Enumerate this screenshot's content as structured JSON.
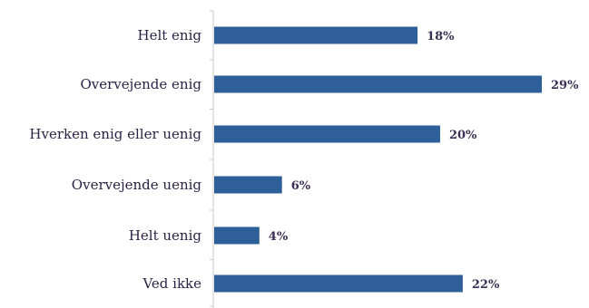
{
  "chart_data": {
    "type": "bar",
    "orientation": "horizontal",
    "categories": [
      "Helt enig",
      "Overvejende enig",
      "Hverken enig eller uenig",
      "Overvejende uenig",
      "Helt uenig",
      "Ved ikke"
    ],
    "values": [
      18,
      29,
      20,
      6,
      4,
      22
    ],
    "value_labels": [
      "18%",
      "29%",
      "20%",
      "6%",
      "4%",
      "22%"
    ],
    "unit": "%",
    "xlim": [
      0,
      29
    ],
    "bar_color": "#2e5f98",
    "grid": false,
    "legend": "none",
    "title": "",
    "xlabel": "",
    "ylabel": ""
  }
}
